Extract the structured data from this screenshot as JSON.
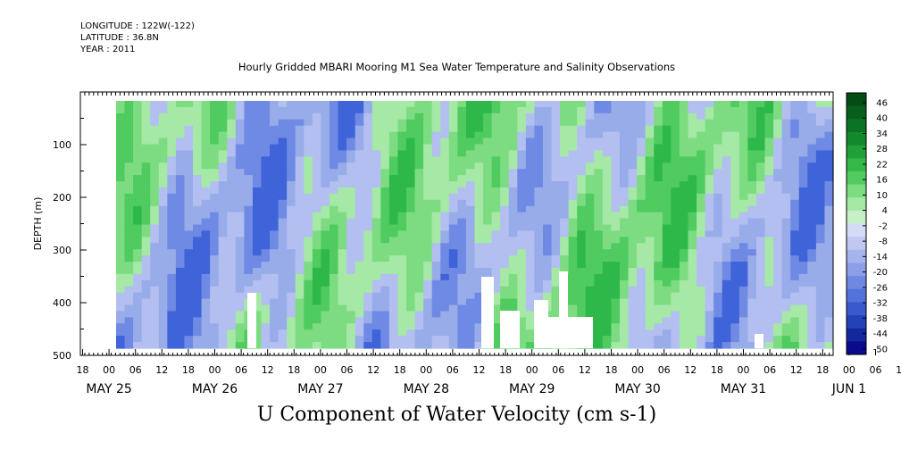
{
  "header": {
    "longitude": "LONGITUDE : 122W(-122)",
    "latitude": "LATITUDE : 36.8N",
    "year": "YEAR : 2011"
  },
  "chart_data": {
    "type": "heatmap",
    "title": "Hourly Gridded MBARI Mooring M1 Sea Water Temperature and Salinity Observations",
    "xlabel": "U Component of Water Velocity (cm s-1)",
    "ylabel": "DEPTH (m)",
    "ylim": [
      500,
      0
    ],
    "y_inverted": true,
    "y_ticks": [
      100,
      200,
      300,
      400,
      500
    ],
    "x_start": "2011-05-24 18:00",
    "x_end": "2011-06-01 19:00",
    "x_hour_ticks": [
      "18",
      "00",
      "06",
      "12",
      "18",
      "00",
      "06",
      "12",
      "18",
      "00",
      "06",
      "12",
      "18",
      "00",
      "06",
      "12",
      "18",
      "00",
      "06",
      "12",
      "18",
      "00",
      "06",
      "12",
      "18",
      "00",
      "06",
      "12",
      "18",
      "00",
      "06",
      "12",
      "18"
    ],
    "x_date_labels": [
      "MAY 25",
      "MAY 26",
      "MAY 27",
      "MAY 28",
      "MAY 29",
      "MAY 30",
      "MAY 31",
      "JUN  1"
    ],
    "colorbar": {
      "levels": [
        "46",
        "40",
        "34",
        "28",
        "22",
        "16",
        "10",
        "4",
        "-2",
        "-8",
        "-14",
        "-20",
        "-26",
        "-32",
        "-38",
        "-44",
        "-50"
      ],
      "range": [
        -50,
        50
      ],
      "colors": [
        "#0a0a8c",
        "#14289e",
        "#2442b8",
        "#3a5acc",
        "#5472da",
        "#6f88e2",
        "#8c9fe8",
        "#a6b4ee",
        "#c0c8f2",
        "#d4dbf6",
        "#c8f0c8",
        "#a4e8a4",
        "#7cdc80",
        "#52cc5e",
        "#34b848",
        "#20a038",
        "#128a2c",
        "#0a7424",
        "#06601c",
        "#044c16"
      ]
    },
    "grid": false
  },
  "colors": {
    "negative_strong": "#2a50d0",
    "negative_light": "#a8b6f0",
    "positive_light": "#a8eaa8",
    "positive_strong": "#2cbc48",
    "missing": "#ffffff"
  }
}
